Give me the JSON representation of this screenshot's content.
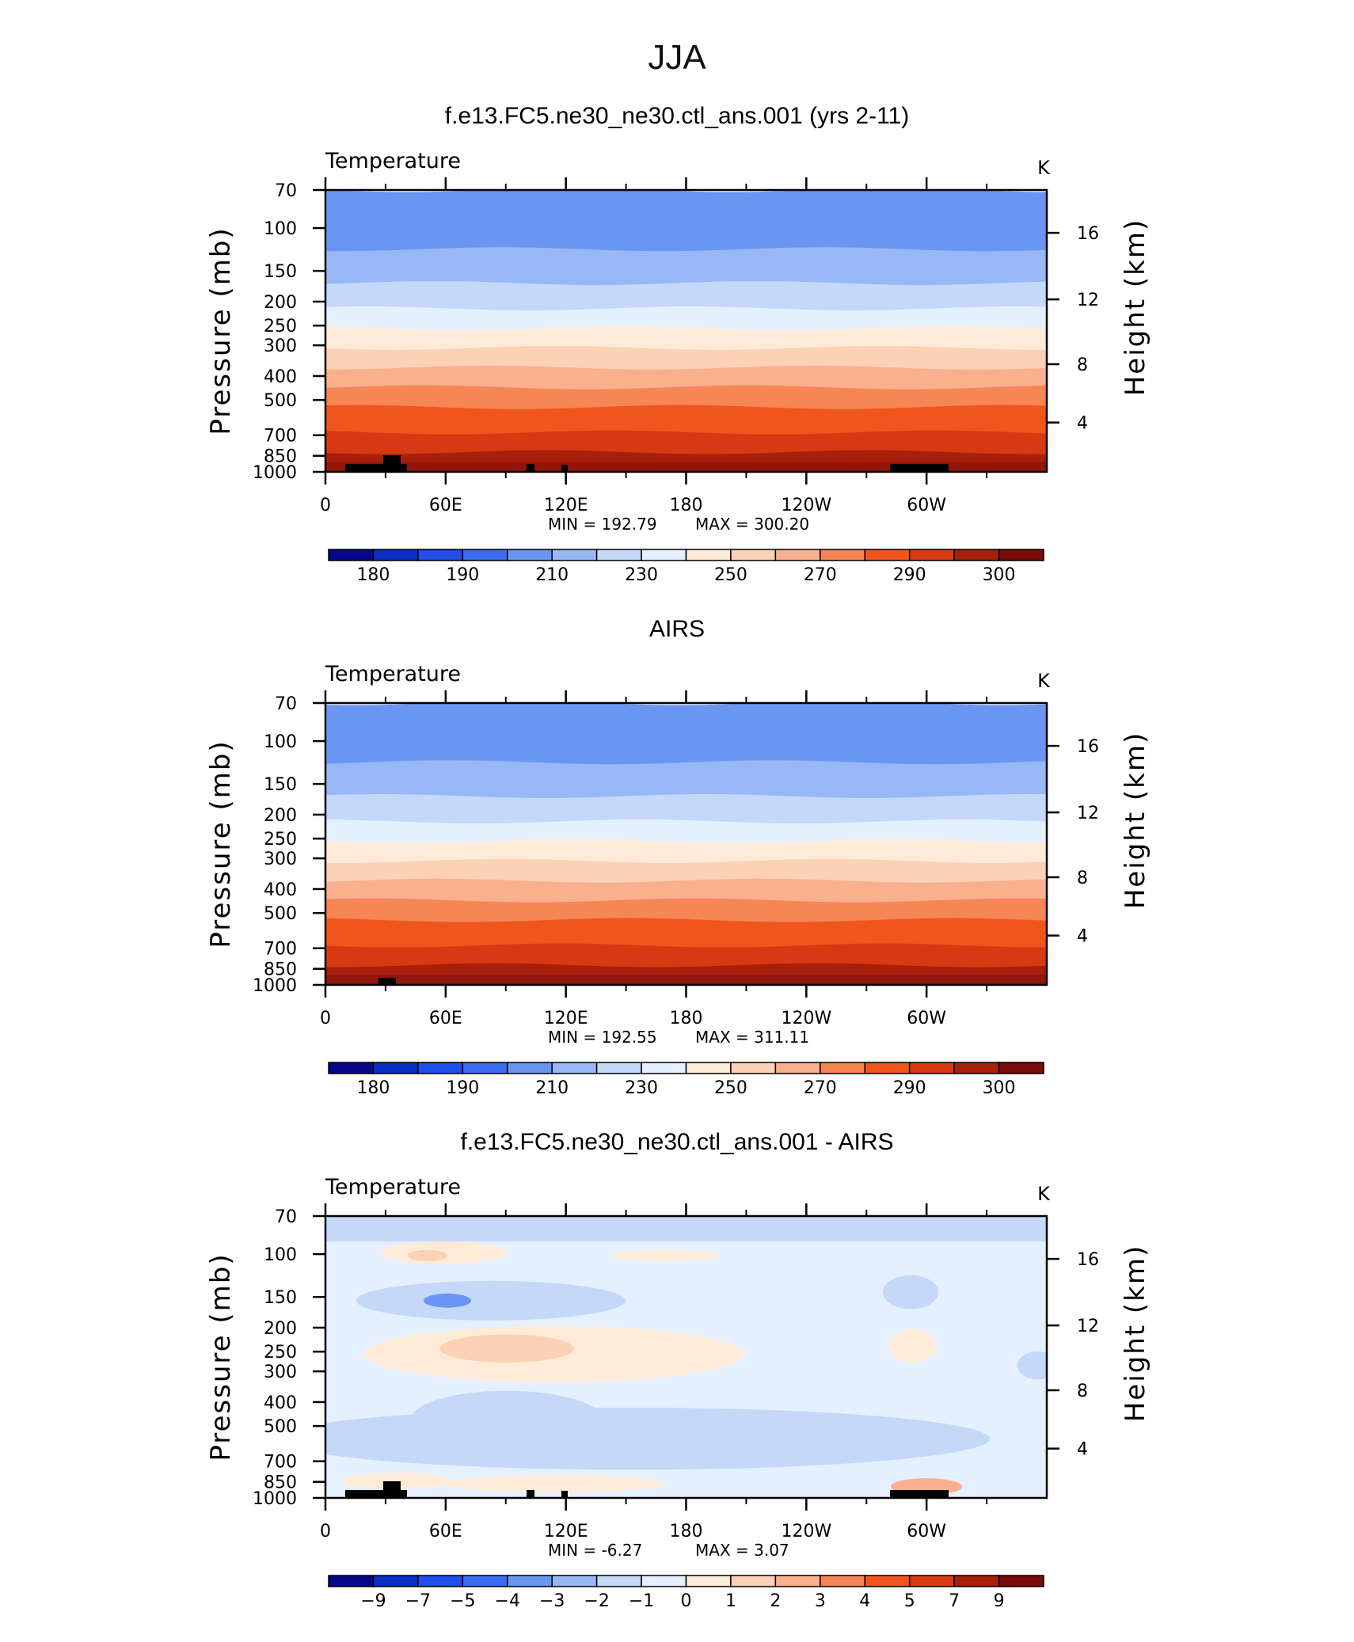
{
  "figure": {
    "title": "JJA"
  },
  "chart_data": [
    {
      "type": "heatmap",
      "panel_title": "f.e13.FC5.ne30_ne30.ctl_ans.001 (yrs 2-11)",
      "left_label": "Temperature",
      "units": "K",
      "ylabel": "Pressure (mb)",
      "y2label": "Height (km)",
      "x_ticklabels": [
        "0",
        "60E",
        "120E",
        "180",
        "120W",
        "60W"
      ],
      "y_ticklabels": [
        "70",
        "100",
        "150",
        "200",
        "250",
        "300",
        "400",
        "500",
        "700",
        "850",
        "1000"
      ],
      "y2_ticklabels": [
        "16",
        "12",
        "8",
        "4"
      ],
      "min_text": "MIN  =  192.79",
      "max_text": "MAX  =  300.20",
      "colorbar_labels": [
        "180",
        "190",
        "210",
        "230",
        "250",
        "270",
        "290",
        "300"
      ],
      "min": 192.79,
      "max": 300.2
    },
    {
      "type": "heatmap",
      "panel_title": "AIRS",
      "left_label": "Temperature",
      "units": "K",
      "ylabel": "Pressure (mb)",
      "y2label": "Height (km)",
      "x_ticklabels": [
        "0",
        "60E",
        "120E",
        "180",
        "120W",
        "60W"
      ],
      "y_ticklabels": [
        "70",
        "100",
        "150",
        "200",
        "250",
        "300",
        "400",
        "500",
        "700",
        "850",
        "1000"
      ],
      "y2_ticklabels": [
        "16",
        "12",
        "8",
        "4"
      ],
      "min_text": "MIN  =  192.55",
      "max_text": "MAX  =  311.11",
      "colorbar_labels": [
        "180",
        "190",
        "210",
        "230",
        "250",
        "270",
        "290",
        "300"
      ],
      "min": 192.55,
      "max": 311.11
    },
    {
      "type": "heatmap",
      "panel_title": "f.e13.FC5.ne30_ne30.ctl_ans.001 - AIRS",
      "left_label": "Temperature",
      "units": "K",
      "ylabel": "Pressure (mb)",
      "y2label": "Height (km)",
      "x_ticklabels": [
        "0",
        "60E",
        "120E",
        "180",
        "120W",
        "60W"
      ],
      "y_ticklabels": [
        "70",
        "100",
        "150",
        "200",
        "250",
        "300",
        "400",
        "500",
        "700",
        "850",
        "1000"
      ],
      "y2_ticklabels": [
        "16",
        "12",
        "8",
        "4"
      ],
      "min_text": "MIN  =    -6.27",
      "max_text": "MAX  =      3.07",
      "colorbar_labels": [
        "-9",
        "-7",
        "-5",
        "-4",
        "-3",
        "-2",
        "-1",
        "0",
        "1",
        "2",
        "3",
        "4",
        "5",
        "7",
        "9"
      ],
      "min": -6.27,
      "max": 3.07
    }
  ],
  "colorbar_colors": [
    "#08088c",
    "#0a2fc4",
    "#1f4fe8",
    "#3b6cf0",
    "#6a95f2",
    "#98b8f5",
    "#c4d8f8",
    "#e4efff",
    "#fdebd8",
    "#fbd2b5",
    "#f9b08e",
    "#f68656",
    "#f0551e",
    "#d73a12",
    "#a8200c",
    "#7a0a0a"
  ]
}
